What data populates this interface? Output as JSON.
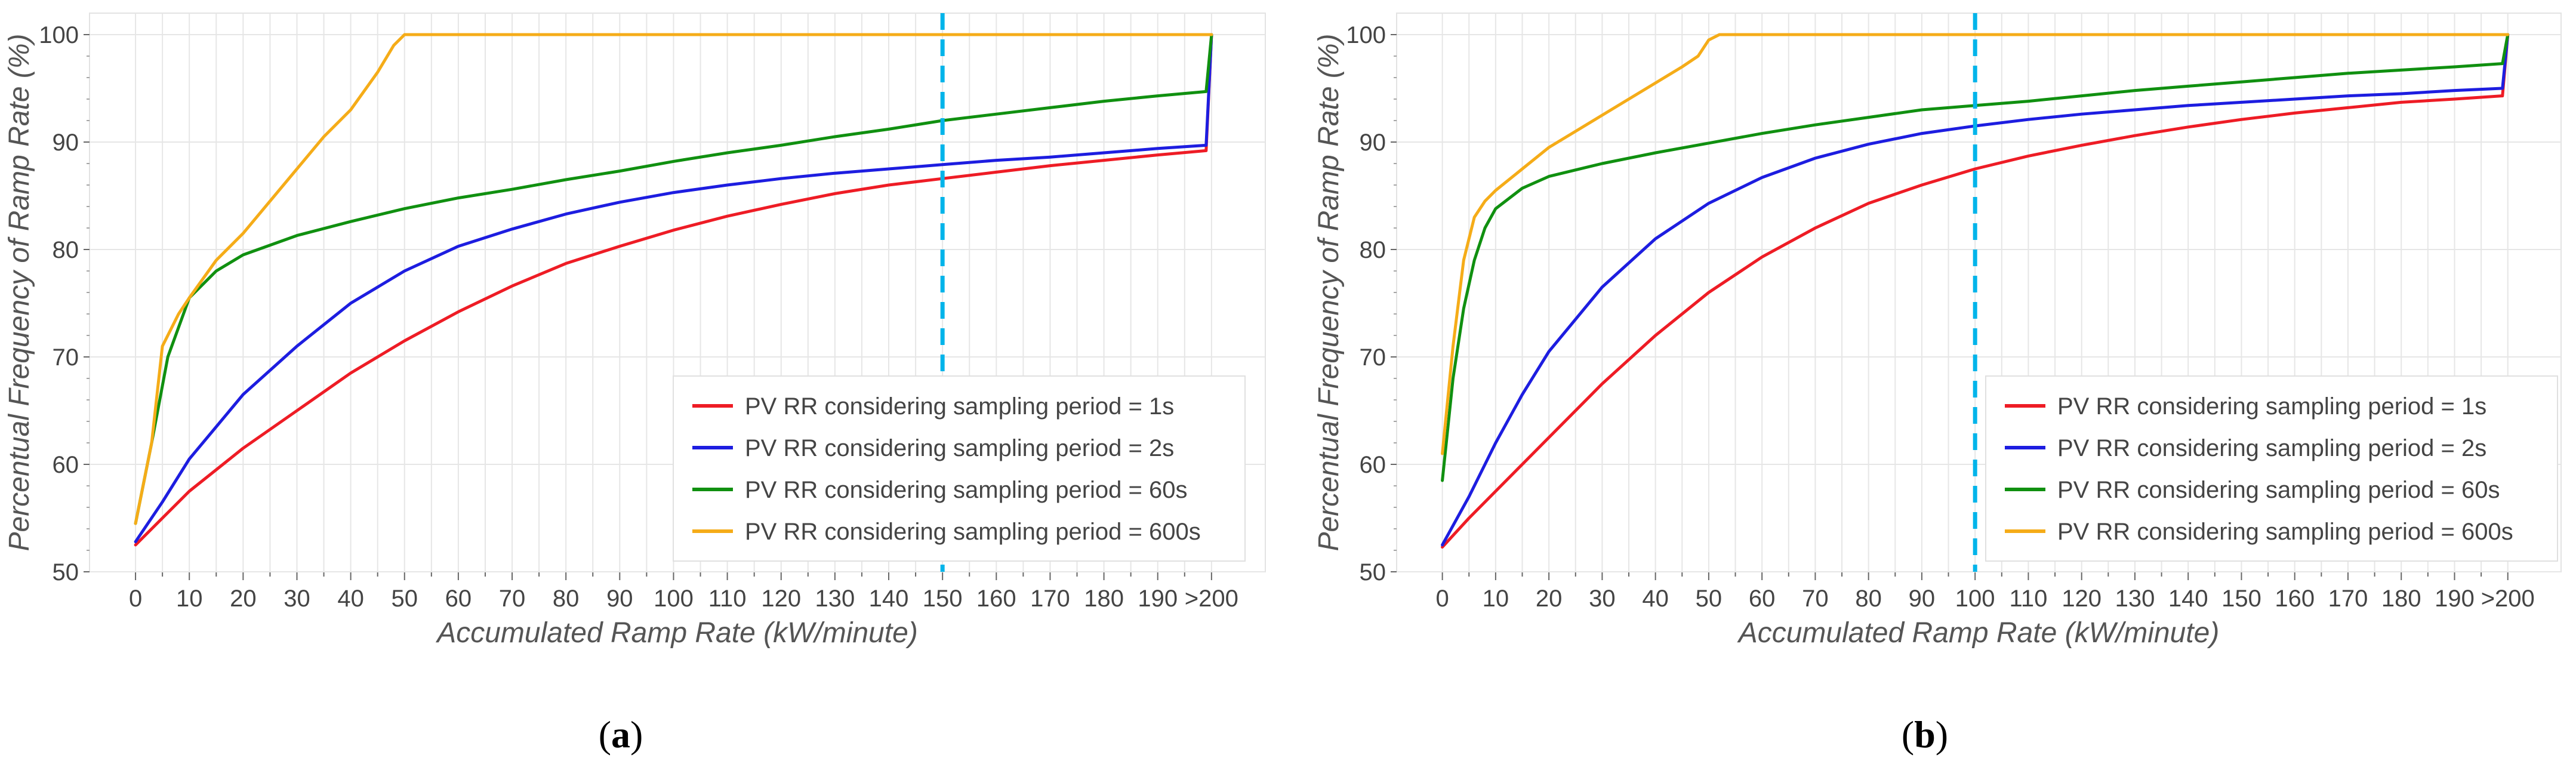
{
  "chart_data": [
    {
      "type": "line",
      "caption_letter": "a",
      "xlabel": "Accumulated Ramp Rate (kW/minute)",
      "ylabel": "Percentual Frequency of Ramp Rate (%)",
      "xlim": [
        -5,
        210
      ],
      "ylim": [
        50,
        102
      ],
      "xticks": [
        0,
        5,
        10,
        15,
        20,
        25,
        30,
        35,
        40,
        45,
        50,
        55,
        60,
        65,
        70,
        75,
        80,
        85,
        90,
        95,
        100,
        105,
        110,
        115,
        120,
        125,
        130,
        135,
        140,
        145,
        150,
        155,
        160,
        165,
        170,
        175,
        180,
        185,
        190,
        195,
        200
      ],
      "xtick_labels": [
        "0",
        "10",
        "20",
        "30",
        "40",
        "50",
        "60",
        "70",
        "80",
        "90",
        "100",
        "110",
        "120",
        "130",
        "140",
        "150",
        "160",
        "170",
        "180",
        "190",
        ">200"
      ],
      "label_every": 10,
      "yticks": [
        50,
        60,
        70,
        80,
        90,
        100
      ],
      "ytick_labels": [
        "50",
        "60",
        "70",
        "80",
        "90",
        "100"
      ],
      "threshold": 150,
      "threshold_color": "#00b4ea",
      "legend_position": "bottom-right",
      "series": [
        {
          "name": "PV RR considering sampling period = 1s",
          "color": "#ee1c25",
          "x": [
            0,
            5,
            10,
            15,
            20,
            30,
            40,
            50,
            60,
            70,
            80,
            90,
            100,
            110,
            120,
            130,
            140,
            150,
            160,
            170,
            180,
            190,
            199,
            200
          ],
          "y": [
            52.5,
            55,
            57.5,
            59.5,
            61.5,
            65,
            68.5,
            71.5,
            74.2,
            76.6,
            78.7,
            80.3,
            81.8,
            83.1,
            84.2,
            85.2,
            86.0,
            86.6,
            87.2,
            87.8,
            88.3,
            88.8,
            89.2,
            100
          ]
        },
        {
          "name": "PV RR considering sampling period = 2s",
          "color": "#1d1de0",
          "x": [
            0,
            5,
            10,
            15,
            20,
            30,
            40,
            50,
            60,
            70,
            80,
            90,
            100,
            110,
            120,
            130,
            140,
            150,
            160,
            170,
            180,
            190,
            199,
            200
          ],
          "y": [
            52.8,
            56.5,
            60.5,
            63.5,
            66.5,
            71,
            75,
            78,
            80.3,
            81.9,
            83.3,
            84.4,
            85.3,
            86,
            86.6,
            87.1,
            87.5,
            87.9,
            88.3,
            88.6,
            89,
            89.4,
            89.7,
            100
          ]
        },
        {
          "name": "PV RR considering sampling period = 60s",
          "color": "#109010",
          "x": [
            0,
            3,
            6,
            10,
            15,
            20,
            30,
            40,
            50,
            60,
            70,
            80,
            90,
            100,
            110,
            120,
            130,
            140,
            150,
            160,
            170,
            180,
            190,
            199,
            200
          ],
          "y": [
            54.5,
            62,
            70,
            75.5,
            78,
            79.5,
            81.3,
            82.6,
            83.8,
            84.8,
            85.6,
            86.5,
            87.3,
            88.2,
            89,
            89.7,
            90.5,
            91.2,
            92,
            92.6,
            93.2,
            93.8,
            94.3,
            94.7,
            100
          ]
        },
        {
          "name": "PV RR considering sampling period = 600s",
          "color": "#f5ac18",
          "x": [
            0,
            3,
            5,
            8,
            10,
            15,
            20,
            25,
            30,
            35,
            40,
            45,
            48,
            50,
            52,
            55,
            60,
            80,
            100,
            150,
            200
          ],
          "y": [
            54.5,
            62,
            71,
            74,
            75.5,
            79,
            81.5,
            84.5,
            87.5,
            90.5,
            93,
            96.5,
            99,
            100,
            100,
            100,
            100,
            100,
            100,
            100,
            100
          ]
        }
      ]
    },
    {
      "type": "line",
      "caption_letter": "b",
      "xlabel": "Accumulated Ramp Rate (kW/minute)",
      "ylabel": "Percentual Frequency of Ramp Rate (%)",
      "xlim": [
        -5,
        210
      ],
      "ylim": [
        50,
        102
      ],
      "xticks": [
        0,
        5,
        10,
        15,
        20,
        25,
        30,
        35,
        40,
        45,
        50,
        55,
        60,
        65,
        70,
        75,
        80,
        85,
        90,
        95,
        100,
        105,
        110,
        115,
        120,
        125,
        130,
        135,
        140,
        145,
        150,
        155,
        160,
        165,
        170,
        175,
        180,
        185,
        190,
        195,
        200
      ],
      "xtick_labels": [
        "0",
        "10",
        "20",
        "30",
        "40",
        "50",
        "60",
        "70",
        "80",
        "90",
        "100",
        "110",
        "120",
        "130",
        "140",
        "150",
        "160",
        "170",
        "180",
        "190",
        ">200"
      ],
      "label_every": 10,
      "yticks": [
        50,
        60,
        70,
        80,
        90,
        100
      ],
      "ytick_labels": [
        "50",
        "60",
        "70",
        "80",
        "90",
        "100"
      ],
      "threshold": 100,
      "threshold_color": "#00b4ea",
      "legend_position": "bottom-right",
      "series": [
        {
          "name": "PV RR considering sampling period = 1s",
          "color": "#ee1c25",
          "x": [
            0,
            5,
            10,
            15,
            20,
            30,
            40,
            50,
            60,
            70,
            80,
            90,
            100,
            110,
            120,
            130,
            140,
            150,
            160,
            170,
            180,
            190,
            199,
            200
          ],
          "y": [
            52.3,
            55,
            57.5,
            60,
            62.5,
            67.5,
            72,
            76,
            79.3,
            82,
            84.3,
            86,
            87.5,
            88.7,
            89.7,
            90.6,
            91.4,
            92.1,
            92.7,
            93.2,
            93.7,
            94,
            94.3,
            100
          ]
        },
        {
          "name": "PV RR considering sampling period = 2s",
          "color": "#1d1de0",
          "x": [
            0,
            5,
            10,
            15,
            20,
            30,
            40,
            50,
            60,
            70,
            80,
            90,
            100,
            110,
            120,
            130,
            140,
            150,
            160,
            170,
            180,
            190,
            199,
            200
          ],
          "y": [
            52.5,
            57,
            62,
            66.5,
            70.5,
            76.5,
            81,
            84.3,
            86.7,
            88.5,
            89.8,
            90.8,
            91.5,
            92.1,
            92.6,
            93,
            93.4,
            93.7,
            94,
            94.3,
            94.5,
            94.8,
            95,
            100
          ]
        },
        {
          "name": "PV RR considering sampling period = 60s",
          "color": "#109010",
          "x": [
            0,
            2,
            4,
            6,
            8,
            10,
            15,
            20,
            30,
            40,
            50,
            60,
            70,
            80,
            90,
            100,
            110,
            120,
            130,
            140,
            150,
            160,
            170,
            180,
            190,
            199,
            200
          ],
          "y": [
            58.5,
            68,
            74.5,
            79,
            82,
            83.8,
            85.7,
            86.8,
            88,
            89,
            89.9,
            90.8,
            91.6,
            92.3,
            93,
            93.4,
            93.8,
            94.3,
            94.8,
            95.2,
            95.6,
            96,
            96.4,
            96.7,
            97,
            97.3,
            100
          ]
        },
        {
          "name": "PV RR considering sampling period = 600s",
          "color": "#f5ac18",
          "x": [
            0,
            2,
            4,
            6,
            8,
            10,
            15,
            20,
            25,
            30,
            35,
            40,
            45,
            48,
            50,
            52,
            55,
            60,
            100,
            150,
            200
          ],
          "y": [
            61,
            71,
            79,
            83,
            84.5,
            85.5,
            87.5,
            89.5,
            91,
            92.5,
            94,
            95.5,
            97,
            98,
            99.5,
            100,
            100,
            100,
            100,
            100,
            100
          ]
        }
      ]
    }
  ]
}
